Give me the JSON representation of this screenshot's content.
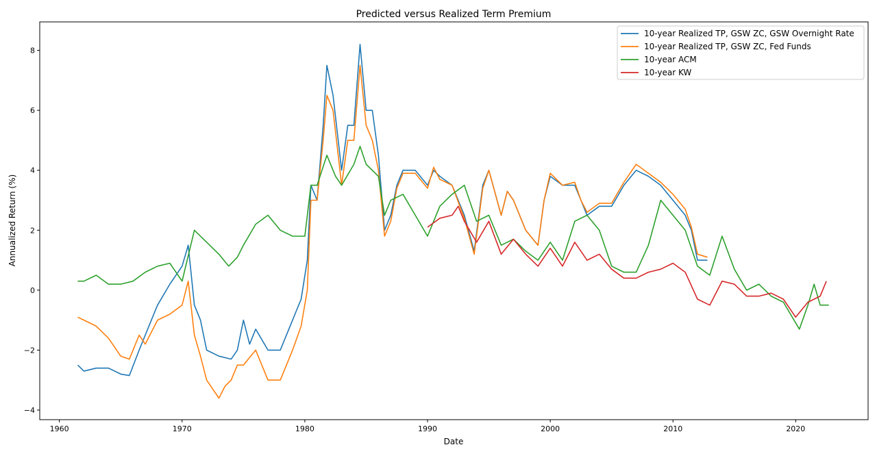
{
  "chart_data": {
    "type": "line",
    "title": "Predicted versus Realized Term Premium",
    "xlabel": "Date",
    "ylabel": "Annualized Return (%)",
    "xlim": [
      1958.4,
      2025.9
    ],
    "ylim": [
      -4.32,
      8.95
    ],
    "xticks": [
      1960,
      1970,
      1980,
      1990,
      2000,
      2010,
      2020
    ],
    "yticks": [
      -4,
      -2,
      0,
      2,
      4,
      6,
      8
    ],
    "grid": false,
    "legend_placement": "top-right",
    "series": [
      {
        "name": "10-year Realized TP, GSW ZC, GSW Overnight Rate",
        "color": "#1f77b4",
        "x": [
          1961.5,
          1962,
          1963,
          1964,
          1965,
          1965.7,
          1966.5,
          1967,
          1968,
          1969,
          1970,
          1970.5,
          1971,
          1971.5,
          1972,
          1973,
          1974,
          1974.5,
          1975,
          1975.5,
          1976,
          1977,
          1978,
          1979,
          1979.7,
          1980.2,
          1980.5,
          1981,
          1981.5,
          1981.8,
          1982.3,
          1983,
          1983.5,
          1984,
          1984.5,
          1985,
          1985.5,
          1986,
          1986.5,
          1987,
          1987.5,
          1988,
          1989,
          1990,
          1990.5,
          1991,
          1992,
          1993,
          1993.8,
          1994.5,
          1995,
          1996,
          1996.5,
          1997,
          1998,
          1999,
          1999.5,
          2000,
          2001,
          2002,
          2002.5,
          2003,
          2004,
          2005,
          2006,
          2007,
          2008,
          2009,
          2010,
          2011,
          2011.5,
          2012,
          2012.8
        ],
        "y": [
          -2.5,
          -2.7,
          -2.6,
          -2.6,
          -2.8,
          -2.85,
          -2.0,
          -1.5,
          -0.5,
          0.2,
          0.8,
          1.5,
          -0.5,
          -1.0,
          -2.0,
          -2.2,
          -2.3,
          -2.0,
          -1.0,
          -1.8,
          -1.3,
          -2.0,
          -2.0,
          -1.0,
          -0.3,
          1.0,
          3.5,
          3.0,
          5.5,
          7.5,
          6.5,
          4.0,
          5.5,
          5.5,
          8.2,
          6.0,
          6.0,
          4.5,
          2.0,
          2.5,
          3.5,
          4.0,
          4.0,
          3.5,
          4.0,
          3.8,
          3.5,
          2.5,
          1.3,
          3.5,
          4.0,
          2.5,
          3.3,
          3.0,
          2.0,
          1.5,
          3.0,
          3.8,
          3.5,
          3.5,
          3.0,
          2.5,
          2.8,
          2.8,
          3.5,
          4.0,
          3.8,
          3.5,
          3.0,
          2.5,
          2.0,
          1.0,
          1.0
        ]
      },
      {
        "name": "10-year Realized TP, GSW ZC, Fed Funds",
        "color": "#ff7f0e",
        "x": [
          1961.5,
          1962,
          1963,
          1964,
          1965,
          1965.7,
          1966.5,
          1967,
          1968,
          1969,
          1970,
          1970.5,
          1971,
          1971.5,
          1972,
          1973,
          1973.5,
          1974,
          1974.5,
          1975,
          1976,
          1977,
          1978,
          1979,
          1979.7,
          1980.2,
          1980.5,
          1981,
          1981.5,
          1981.8,
          1982.3,
          1983,
          1983.5,
          1984,
          1984.5,
          1985,
          1985.5,
          1986,
          1986.5,
          1987,
          1987.5,
          1988,
          1989,
          1990,
          1990.5,
          1991,
          1992,
          1993,
          1993.8,
          1994.5,
          1995,
          1996,
          1996.5,
          1997,
          1998,
          1999,
          1999.5,
          2000,
          2001,
          2002,
          2002.5,
          2003,
          2004,
          2005,
          2006,
          2007,
          2008,
          2009,
          2010,
          2011,
          2011.5,
          2012,
          2012.8
        ],
        "y": [
          -0.9,
          -1.0,
          -1.2,
          -1.6,
          -2.2,
          -2.3,
          -1.5,
          -1.8,
          -1.0,
          -0.8,
          -0.5,
          0.3,
          -1.5,
          -2.2,
          -3.0,
          -3.6,
          -3.2,
          -3.0,
          -2.5,
          -2.5,
          -2.0,
          -3.0,
          -3.0,
          -2.0,
          -1.2,
          0.0,
          3.0,
          3.0,
          5.0,
          6.5,
          6.0,
          3.5,
          5.0,
          5.0,
          7.5,
          5.5,
          5.0,
          4.0,
          1.8,
          2.3,
          3.4,
          3.9,
          3.9,
          3.4,
          4.1,
          3.7,
          3.5,
          2.4,
          1.2,
          3.4,
          4.0,
          2.5,
          3.3,
          3.0,
          2.0,
          1.5,
          3.0,
          3.9,
          3.5,
          3.6,
          3.0,
          2.6,
          2.9,
          2.9,
          3.6,
          4.2,
          3.9,
          3.6,
          3.2,
          2.7,
          2.1,
          1.2,
          1.1
        ]
      },
      {
        "name": "10-year ACM",
        "color": "#2ca02c",
        "x": [
          1961.5,
          1962,
          1963,
          1964,
          1965,
          1966,
          1967,
          1968,
          1969,
          1970,
          1971,
          1972,
          1973,
          1973.8,
          1974.5,
          1975,
          1976,
          1977,
          1978,
          1979,
          1980,
          1980.5,
          1981,
          1981.8,
          1982.5,
          1983,
          1984,
          1984.5,
          1985,
          1986,
          1986.5,
          1987,
          1988,
          1989,
          1990,
          1991,
          1992,
          1993,
          1994,
          1995,
          1996,
          1997,
          1998,
          1999,
          2000,
          2001,
          2002,
          2003,
          2004,
          2005,
          2006,
          2007,
          2008,
          2009,
          2010,
          2011,
          2012,
          2013,
          2014,
          2015,
          2016,
          2017,
          2018,
          2019,
          2020.3,
          2021,
          2021.5,
          2022,
          2022.7
        ],
        "y": [
          0.3,
          0.3,
          0.5,
          0.2,
          0.2,
          0.3,
          0.6,
          0.8,
          0.9,
          0.3,
          2.0,
          1.6,
          1.2,
          0.8,
          1.1,
          1.5,
          2.2,
          2.5,
          2.0,
          1.8,
          1.8,
          3.5,
          3.5,
          4.5,
          3.8,
          3.5,
          4.2,
          4.8,
          4.2,
          3.8,
          2.5,
          3.0,
          3.2,
          2.5,
          1.8,
          2.8,
          3.2,
          3.5,
          2.3,
          2.5,
          1.5,
          1.7,
          1.3,
          1.0,
          1.6,
          1.0,
          2.3,
          2.5,
          2.0,
          0.8,
          0.6,
          0.6,
          1.5,
          3.0,
          2.5,
          2.0,
          0.8,
          0.5,
          1.8,
          0.7,
          0.0,
          0.2,
          -0.2,
          -0.4,
          -1.3,
          -0.5,
          0.2,
          -0.5,
          -0.5
        ]
      },
      {
        "name": "10-year KW",
        "color": "#d62728",
        "x": [
          1990,
          1991,
          1992,
          1992.5,
          1993,
          1994,
          1995,
          1996,
          1997,
          1998,
          1999,
          2000,
          2001,
          2002,
          2003,
          2004,
          2005,
          2006,
          2007,
          2008,
          2009,
          2010,
          2011,
          2012,
          2013,
          2014,
          2015,
          2016,
          2017,
          2018,
          2019,
          2020,
          2021,
          2022,
          2022.5
        ],
        "y": [
          2.1,
          2.4,
          2.5,
          2.8,
          2.3,
          1.6,
          2.3,
          1.2,
          1.7,
          1.2,
          0.8,
          1.4,
          0.8,
          1.6,
          1.0,
          1.2,
          0.7,
          0.4,
          0.4,
          0.6,
          0.7,
          0.9,
          0.6,
          -0.3,
          -0.5,
          0.3,
          0.2,
          -0.2,
          -0.2,
          -0.1,
          -0.3,
          -0.9,
          -0.4,
          -0.2,
          0.3
        ]
      }
    ]
  }
}
